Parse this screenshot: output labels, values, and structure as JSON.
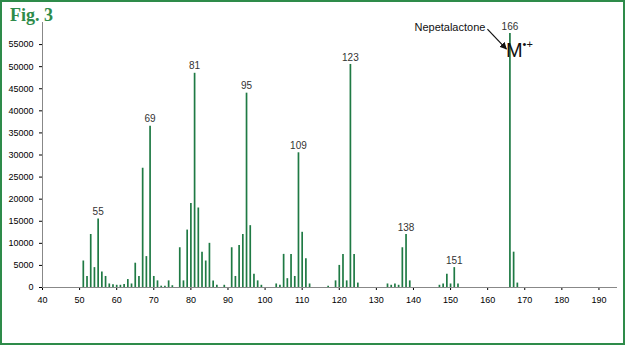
{
  "chart_data": {
    "type": "bar",
    "title": "Fig. 3",
    "color": "#1f7a44",
    "x": [
      51,
      52,
      53,
      54,
      55,
      56,
      57,
      58,
      59,
      60,
      61,
      62,
      63,
      64,
      65,
      66,
      67,
      68,
      69,
      70,
      71,
      72,
      73,
      74,
      75,
      77,
      78,
      79,
      80,
      81,
      82,
      83,
      84,
      85,
      86,
      87,
      89,
      91,
      92,
      93,
      94,
      95,
      96,
      97,
      98,
      99,
      103,
      104,
      105,
      106,
      107,
      108,
      109,
      110,
      111,
      112,
      117,
      119,
      120,
      121,
      122,
      123,
      124,
      125,
      133,
      134,
      135,
      136,
      137,
      138,
      139,
      147,
      148,
      149,
      150,
      151,
      152,
      166,
      167,
      168
    ],
    "values": [
      6000,
      2500,
      12000,
      4500,
      15500,
      3500,
      2500,
      800,
      600,
      500,
      500,
      700,
      1800,
      800,
      5500,
      2500,
      27000,
      7000,
      36500,
      2500,
      1500,
      300,
      300,
      1500,
      400,
      9000,
      1500,
      13000,
      19000,
      48500,
      18000,
      8000,
      6000,
      10000,
      1500,
      500,
      500,
      9000,
      2500,
      9500,
      12000,
      44000,
      14000,
      3000,
      1500,
      500,
      800,
      500,
      7500,
      2000,
      7500,
      2500,
      30500,
      12500,
      6500,
      800,
      300,
      1500,
      5000,
      7500,
      1500,
      50500,
      7500,
      1000,
      800,
      500,
      800,
      500,
      9000,
      12000,
      1500,
      500,
      800,
      3000,
      800,
      4500,
      800,
      57500,
      8000,
      1000
    ],
    "peak_labels": [
      55,
      69,
      81,
      95,
      109,
      123,
      138,
      151,
      166
    ],
    "annotations": [
      {
        "text": "Nepetalactone",
        "x": 166
      },
      {
        "text": "M•+",
        "x": 166
      }
    ],
    "xlim": [
      40,
      195
    ],
    "xticks": [
      40,
      50,
      60,
      70,
      80,
      90,
      100,
      110,
      120,
      130,
      140,
      150,
      160,
      170,
      180,
      190
    ],
    "ylim": [
      0,
      60000
    ],
    "yticks": [
      0,
      5000,
      10000,
      15000,
      20000,
      25000,
      30000,
      35000,
      40000,
      45000,
      50000,
      55000
    ],
    "grid": false
  }
}
